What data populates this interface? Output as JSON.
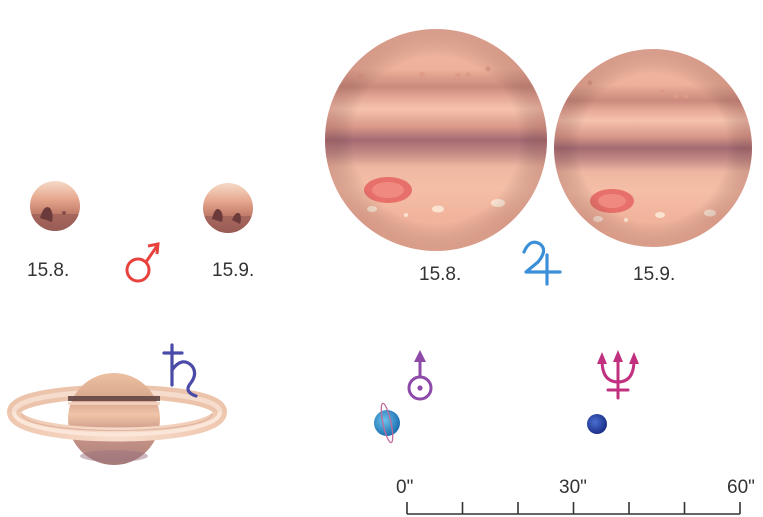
{
  "mars": {
    "symbol": "♂",
    "color": "#e8423f",
    "dates": [
      "15.8.",
      "15.9."
    ]
  },
  "jupiter": {
    "symbol": "♃",
    "color": "#3b8fd8",
    "dates": [
      "15.8.",
      "15.9."
    ]
  },
  "saturn": {
    "symbol": "♄",
    "color": "#4a4aa8"
  },
  "uranus": {
    "symbol": "♅",
    "color": "#8e4aa8"
  },
  "neptune": {
    "symbol": "♆",
    "color": "#c0307f"
  },
  "scale": {
    "labels": [
      "0\"",
      "30\"",
      "60\""
    ],
    "max_arcsec": 60,
    "tick_step_arcsec": 10
  }
}
